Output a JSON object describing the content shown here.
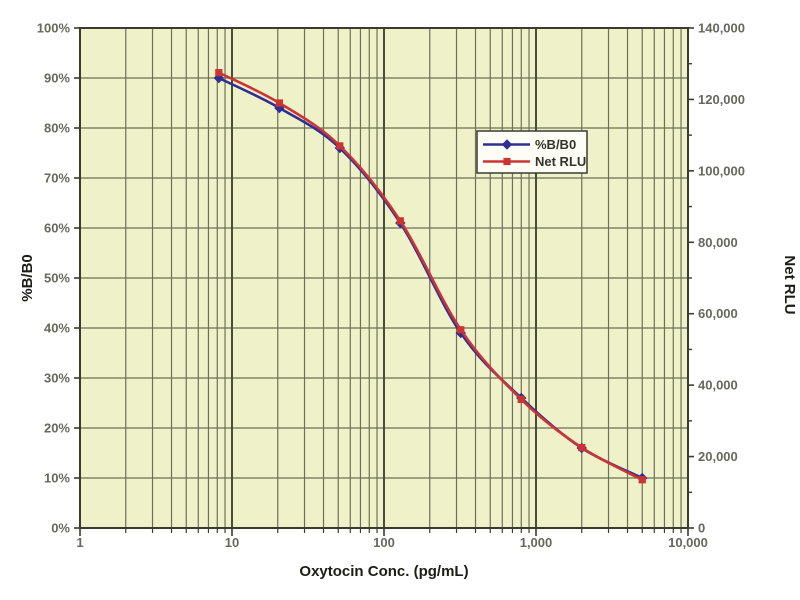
{
  "chart_data": {
    "type": "line",
    "title": "",
    "xlabel": "Oxytocin Conc. (pg/mL)",
    "ylabel_left": "%B/B0",
    "ylabel_right": "Net RLU",
    "x_scale": "log",
    "xlim": [
      1,
      10000
    ],
    "ylim_left": [
      0,
      100
    ],
    "ylim_right": [
      0,
      140000
    ],
    "grid": true,
    "x_tick_labels": [
      "1",
      "10",
      "100",
      "1,000",
      "10,000"
    ],
    "y_left_tick_labels": [
      "0%",
      "10%",
      "20%",
      "30%",
      "40%",
      "50%",
      "60%",
      "70%",
      "80%",
      "90%",
      "100%"
    ],
    "y_right_tick_labels": [
      "0",
      "20,000",
      "40,000",
      "60,000",
      "80,000",
      "100,000",
      "120,000",
      "140,000"
    ],
    "y_right_minor_step": 10000,
    "x": [
      8.19,
      20.5,
      51.2,
      128,
      320,
      800,
      2000,
      5000
    ],
    "series": [
      {
        "name": "%B/B0",
        "axis": "left",
        "color": "#2e2f96",
        "marker": "diamond",
        "values": [
          90,
          84,
          76,
          61,
          39,
          26,
          16,
          10
        ]
      },
      {
        "name": "Net RLU",
        "axis": "right",
        "color": "#cc3333",
        "marker": "square",
        "values": [
          127500,
          119000,
          107000,
          86000,
          55500,
          36000,
          22500,
          13500
        ]
      }
    ],
    "legend": {
      "position": "upper-center",
      "entries": [
        "%B/B0",
        "Net RLU"
      ]
    },
    "colors": {
      "plot_bg": "#eff1c9",
      "grid_minor": "#6e705a",
      "grid_major": "#4a4c3a",
      "axis": "#3a3c2e",
      "tick_label": "#67685c",
      "axis_title": "#1c1d15",
      "legend_bg": "#fdfdf6",
      "legend_border": "#3a3b33"
    }
  }
}
